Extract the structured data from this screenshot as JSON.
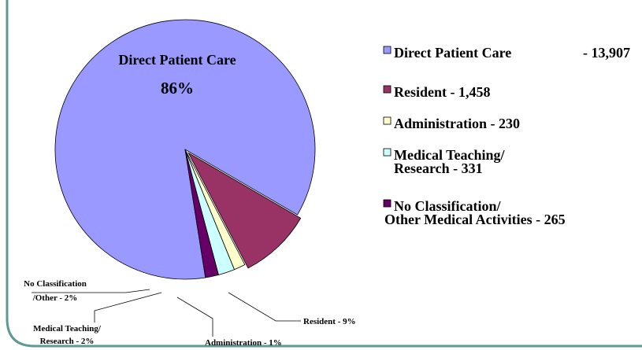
{
  "chart_data": {
    "type": "pie",
    "categories": [
      "Direct Patient Care",
      "Resident",
      "Administration",
      "Medical Teaching/ Research",
      "No Classification/ Other Medical Activities"
    ],
    "values": [
      13907,
      1458,
      230,
      331,
      265
    ],
    "colors": [
      "#9999ff",
      "#993366",
      "#ffffcc",
      "#ccffff",
      "#660066"
    ],
    "slice_labels": [
      [
        "Direct Patient Care",
        "86%"
      ],
      [
        "Resident - 9%"
      ],
      [
        "Administration - 1%"
      ],
      [
        "Medical Teaching/",
        "Research - 2%"
      ],
      [
        "No Classification",
        "/Other - 2%"
      ]
    ],
    "legend_labels": [
      [
        "Direct Patient Care",
        "- 13,907"
      ],
      [
        "Resident - 1,458"
      ],
      [
        "Administration - 230"
      ],
      [
        "Medical Teaching/",
        "Research - 331"
      ],
      [
        "No Classification/",
        "Other Medical Activities - 265"
      ]
    ]
  }
}
